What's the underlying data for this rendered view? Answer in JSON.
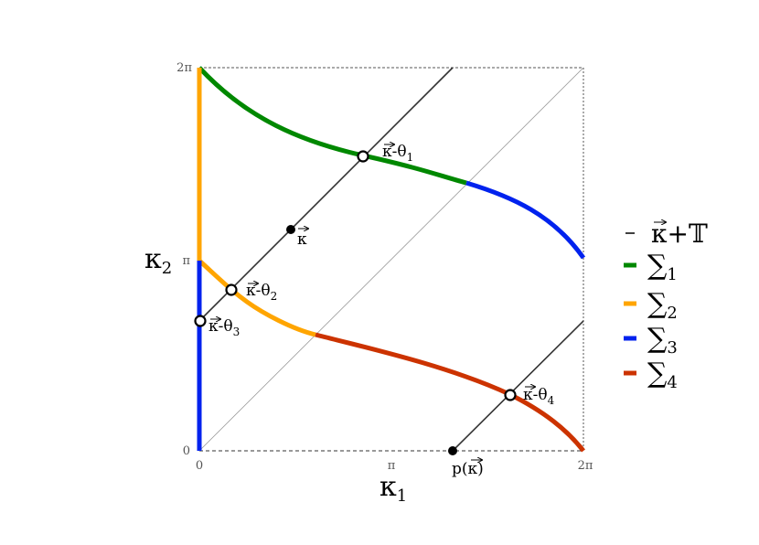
{
  "axes": {
    "x_name": "κ",
    "x_sub": "1",
    "y_name": "κ",
    "y_sub": "2",
    "x_ticks": [
      "0",
      "π",
      "2π"
    ],
    "y_ticks": [
      "0",
      "π",
      "2π"
    ]
  },
  "points": {
    "kappa": "κ",
    "projection": "p(κ)",
    "t1": {
      "base": "κ-θ",
      "sub": "1"
    },
    "t2": {
      "base": "κ-θ",
      "sub": "2"
    },
    "t3": {
      "base": "κ-θ",
      "sub": "3"
    },
    "t4": {
      "base": "κ-θ",
      "sub": "4"
    }
  },
  "legend": {
    "line_label": "κ+𝕋",
    "items": [
      {
        "symbol": "∑",
        "sub": "1",
        "color": "#008800"
      },
      {
        "symbol": "∑",
        "sub": "2",
        "color": "#ffa500"
      },
      {
        "symbol": "∑",
        "sub": "3",
        "color": "#0022ee"
      },
      {
        "symbol": "∑",
        "sub": "4",
        "color": "#cc3300"
      }
    ]
  },
  "colors": {
    "sigma1": "#008800",
    "sigma2": "#ffa500",
    "sigma3": "#0022ee",
    "sigma4": "#cc3300",
    "line": "#333333",
    "diagonal": "#999999",
    "border": "#555555"
  }
}
